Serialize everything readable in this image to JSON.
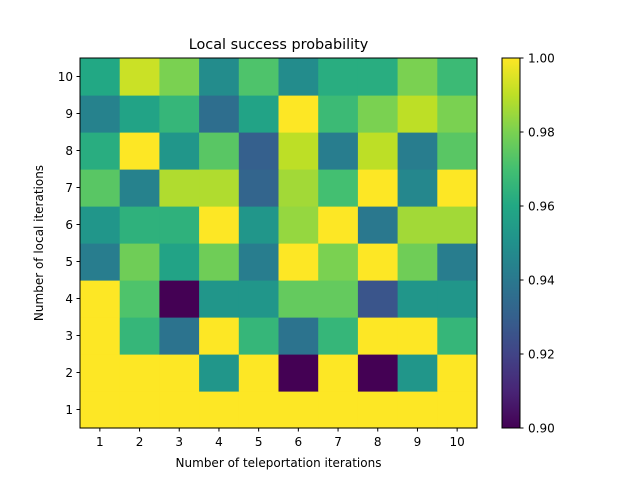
{
  "chart_data": {
    "type": "heatmap",
    "title": "Local success probability",
    "xlabel": "Number of teleportation iterations",
    "ylabel": "Number of local iterations",
    "x": [
      1,
      2,
      3,
      4,
      5,
      6,
      7,
      8,
      9,
      10
    ],
    "y": [
      1,
      2,
      3,
      4,
      5,
      6,
      7,
      8,
      9,
      10
    ],
    "colorbar": {
      "colormap": "viridis",
      "range": [
        0.9,
        1.0
      ],
      "ticks": [
        "0.90",
        "0.92",
        "0.94",
        "0.96",
        "0.98",
        "1.00"
      ]
    },
    "values_by_row_from_y1": [
      [
        1.0,
        1.0,
        1.0,
        1.0,
        1.0,
        1.0,
        1.0,
        1.0,
        1.0,
        1.0
      ],
      [
        1.0,
        1.0,
        1.0,
        0.952,
        1.0,
        0.9,
        1.0,
        0.9,
        0.952,
        1.0
      ],
      [
        1.0,
        0.966,
        0.938,
        1.0,
        0.966,
        0.938,
        0.966,
        1.0,
        1.0,
        0.966
      ],
      [
        1.0,
        0.972,
        0.9,
        0.952,
        0.952,
        0.976,
        0.976,
        0.926,
        0.952,
        0.952
      ],
      [
        0.942,
        0.978,
        0.958,
        0.978,
        0.942,
        1.0,
        0.98,
        1.0,
        0.978,
        0.942
      ],
      [
        0.952,
        0.964,
        0.964,
        1.0,
        0.952,
        0.984,
        1.0,
        0.94,
        0.986,
        0.986
      ],
      [
        0.974,
        0.944,
        0.988,
        0.988,
        0.932,
        0.986,
        0.97,
        1.0,
        0.946,
        1.0
      ],
      [
        0.962,
        1.0,
        0.952,
        0.974,
        0.93,
        0.99,
        0.942,
        0.99,
        0.942,
        0.974
      ],
      [
        0.944,
        0.958,
        0.966,
        0.936,
        0.958,
        1.0,
        0.968,
        0.98,
        0.99,
        0.98
      ],
      [
        0.96,
        0.992,
        0.98,
        0.948,
        0.972,
        0.948,
        0.962,
        0.962,
        0.98,
        0.968
      ]
    ]
  }
}
